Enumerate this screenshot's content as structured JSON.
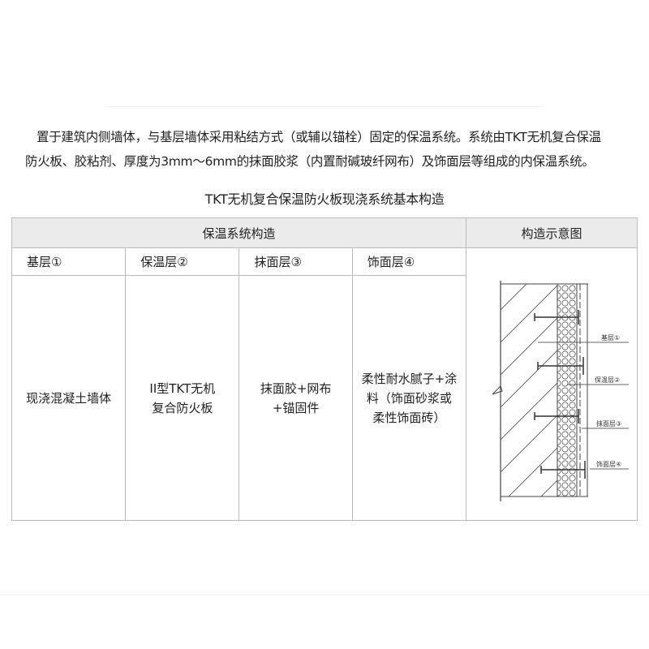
{
  "intro": {
    "line1": "置于建筑内侧墙体，与基层墙体采用粘结方式（或辅以锚栓）固定的保温系统。系统由TKT无机复合保温",
    "line2": "防火板、胶粘剂、厚度为3mm～6mm的抹面胶浆（内置耐碱玻纤网布）及饰面层等组成的内保温系统。"
  },
  "table_title": "TKT无机复合保温防火板现浇系统基本构造",
  "table": {
    "header_group": "保温系统构造",
    "header_diagram": "构造示意图",
    "columns": [
      "基层①",
      "保温层②",
      "抹面层③",
      "饰面层④"
    ],
    "cells": [
      "现浇混凝土墙体",
      "II型TKT无机\n复合防火板",
      "抹面胶+网布\n+锚固件",
      "柔性耐水腻子+涂\n料（饰面砂浆或\n柔性饰面砖）"
    ]
  },
  "diagram": {
    "labels": [
      "基层①",
      "保温层②",
      "抹面层③",
      "饰面层④"
    ]
  }
}
